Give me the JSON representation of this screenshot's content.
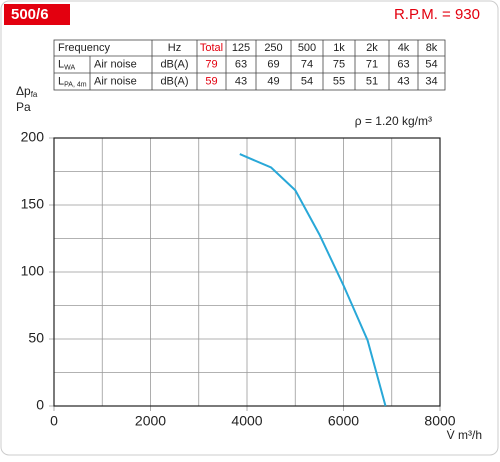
{
  "header": {
    "badge": "500/6",
    "rpm": "R.P.M. = 930"
  },
  "table": {
    "header": [
      "Frequency",
      "Hz",
      "Total",
      "125",
      "250",
      "500",
      "1k",
      "2k",
      "4k",
      "8k"
    ],
    "rows": [
      {
        "symbol": "L",
        "sub": "WA",
        "label": "Air noise",
        "unit": "dB(A)",
        "values": [
          79,
          63,
          69,
          74,
          75,
          71,
          63,
          54
        ]
      },
      {
        "symbol": "L",
        "sub": "PA, 4m",
        "label": "Air noise",
        "unit": "dB(A)",
        "values": [
          59,
          43,
          49,
          54,
          55,
          51,
          43,
          34
        ]
      }
    ]
  },
  "chart_data": {
    "type": "line",
    "y_label": "Δp",
    "y_label_sub": "fa",
    "y_unit": "Pa",
    "x_label": "V̇ m³/h",
    "annotation": "ρ = 1.20 kg/m³",
    "x": [
      3850,
      4500,
      5000,
      5500,
      6000,
      6500,
      6870
    ],
    "values": [
      188,
      178,
      161,
      128,
      90,
      49,
      0
    ],
    "color": "#29a8d8",
    "xlim": [
      0,
      8000
    ],
    "xticks": [
      0,
      2000,
      4000,
      6000,
      8000
    ],
    "xminorticks": [
      1000,
      3000,
      5000,
      7000
    ],
    "ylim": [
      0,
      200
    ],
    "yticks": [
      0,
      50,
      100,
      150,
      200
    ],
    "yminorticks": [
      25,
      75,
      125,
      175
    ],
    "grid": true
  }
}
